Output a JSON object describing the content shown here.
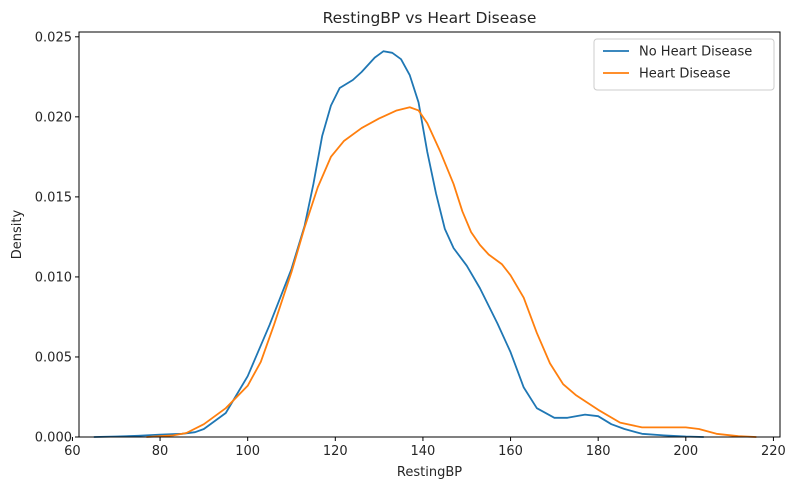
{
  "chart_data": {
    "type": "line",
    "title": "RestingBP vs Heart Disease",
    "xlabel": "RestingBP",
    "ylabel": "Density",
    "xlim": [
      61.5,
      221.5
    ],
    "ylim": [
      0,
      0.0253
    ],
    "xticks": [
      60,
      80,
      100,
      120,
      140,
      160,
      180,
      200,
      220
    ],
    "xtick_labels": [
      "60",
      "80",
      "100",
      "120",
      "140",
      "160",
      "180",
      "200",
      "220"
    ],
    "yticks": [
      0,
      0.005,
      0.01,
      0.015,
      0.02,
      0.025
    ],
    "ytick_labels": [
      "0.000",
      "0.005",
      "0.010",
      "0.015",
      "0.020",
      "0.025"
    ],
    "grid": false,
    "legend_position": "top-right",
    "series": [
      {
        "name": "No Heart Disease",
        "color": "#1f77b4",
        "points": [
          [
            65,
            0
          ],
          [
            70,
            3e-05
          ],
          [
            75,
            8e-05
          ],
          [
            80,
            0.00015
          ],
          [
            85,
            0.0002
          ],
          [
            88,
            0.0003
          ],
          [
            90,
            0.0005
          ],
          [
            95,
            0.0015
          ],
          [
            100,
            0.0038
          ],
          [
            105,
            0.007
          ],
          [
            110,
            0.0105
          ],
          [
            113,
            0.0132
          ],
          [
            115,
            0.0158
          ],
          [
            117,
            0.0188
          ],
          [
            119,
            0.0207
          ],
          [
            121,
            0.0218
          ],
          [
            124,
            0.0223
          ],
          [
            126,
            0.0228
          ],
          [
            129,
            0.0237
          ],
          [
            131,
            0.0241
          ],
          [
            133,
            0.024
          ],
          [
            135,
            0.0236
          ],
          [
            137,
            0.0226
          ],
          [
            139,
            0.0209
          ],
          [
            141,
            0.0178
          ],
          [
            143,
            0.0152
          ],
          [
            145,
            0.013
          ],
          [
            147,
            0.0118
          ],
          [
            150,
            0.0107
          ],
          [
            153,
            0.0093
          ],
          [
            157,
            0.0071
          ],
          [
            160,
            0.0053
          ],
          [
            163,
            0.0031
          ],
          [
            166,
            0.0018
          ],
          [
            170,
            0.0012
          ],
          [
            173,
            0.0012
          ],
          [
            177,
            0.0014
          ],
          [
            180,
            0.0013
          ],
          [
            183,
            0.0008
          ],
          [
            186,
            0.0005
          ],
          [
            190,
            0.0002
          ],
          [
            195,
            0.0001
          ],
          [
            200,
            3e-05
          ],
          [
            204,
            0
          ]
        ]
      },
      {
        "name": "Heart Disease",
        "color": "#ff7f0e",
        "points": [
          [
            77,
            0
          ],
          [
            80,
            5e-05
          ],
          [
            83,
            0.0001
          ],
          [
            86,
            0.00025
          ],
          [
            90,
            0.0008
          ],
          [
            95,
            0.0018
          ],
          [
            100,
            0.0032
          ],
          [
            103,
            0.0047
          ],
          [
            106,
            0.007
          ],
          [
            110,
            0.0103
          ],
          [
            113,
            0.0131
          ],
          [
            116,
            0.0156
          ],
          [
            119,
            0.0175
          ],
          [
            122,
            0.0185
          ],
          [
            126,
            0.0193
          ],
          [
            130,
            0.0199
          ],
          [
            134,
            0.0204
          ],
          [
            137,
            0.0206
          ],
          [
            139,
            0.0204
          ],
          [
            141,
            0.0196
          ],
          [
            144,
            0.0178
          ],
          [
            147,
            0.0158
          ],
          [
            149,
            0.0141
          ],
          [
            151,
            0.0128
          ],
          [
            153,
            0.012
          ],
          [
            155,
            0.0114
          ],
          [
            158,
            0.0108
          ],
          [
            160,
            0.0101
          ],
          [
            163,
            0.0087
          ],
          [
            166,
            0.0065
          ],
          [
            169,
            0.0046
          ],
          [
            172,
            0.0033
          ],
          [
            175,
            0.0026
          ],
          [
            180,
            0.0017
          ],
          [
            185,
            0.0009
          ],
          [
            190,
            0.0006
          ],
          [
            195,
            0.0006
          ],
          [
            200,
            0.0006
          ],
          [
            203,
            0.0005
          ],
          [
            207,
            0.0002
          ],
          [
            212,
            5e-05
          ],
          [
            216,
            0
          ]
        ]
      }
    ]
  }
}
